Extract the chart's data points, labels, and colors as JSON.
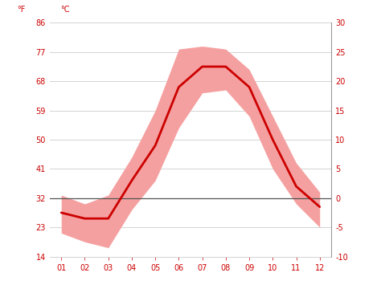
{
  "months": [
    1,
    2,
    3,
    4,
    5,
    6,
    7,
    8,
    9,
    10,
    11,
    12
  ],
  "month_labels": [
    "01",
    "02",
    "03",
    "04",
    "05",
    "06",
    "07",
    "08",
    "09",
    "10",
    "11",
    "12"
  ],
  "avg_temp_C": [
    -2.5,
    -3.5,
    -3.5,
    3.0,
    9.0,
    19.0,
    22.5,
    22.5,
    19.0,
    10.0,
    2.0,
    -1.5
  ],
  "high_temp_C": [
    0.5,
    -1.0,
    0.5,
    7.0,
    15.0,
    25.5,
    26.0,
    25.5,
    22.0,
    14.0,
    6.0,
    1.0
  ],
  "low_temp_C": [
    -6.0,
    -7.5,
    -8.5,
    -2.0,
    3.0,
    12.0,
    18.0,
    18.5,
    14.0,
    5.0,
    -1.0,
    -5.0
  ],
  "yticks_C": [
    -10,
    -5,
    0,
    5,
    10,
    15,
    20,
    25,
    30
  ],
  "yticks_F": [
    14,
    23,
    32,
    41,
    50,
    59,
    68,
    77,
    86
  ],
  "ylim_C": [
    -10,
    30
  ],
  "xlim": [
    0.5,
    12.5
  ],
  "line_color": "#cc0000",
  "band_color": "#f5a0a0",
  "zero_line_color": "#555555",
  "grid_color": "#cccccc",
  "axis_label_color": "#cc0000",
  "tick_color": "#cc0000",
  "background_color": "#ffffff",
  "label_F": "°F",
  "label_C": "°C",
  "font_size": 7,
  "right_spine_color": "#999999"
}
